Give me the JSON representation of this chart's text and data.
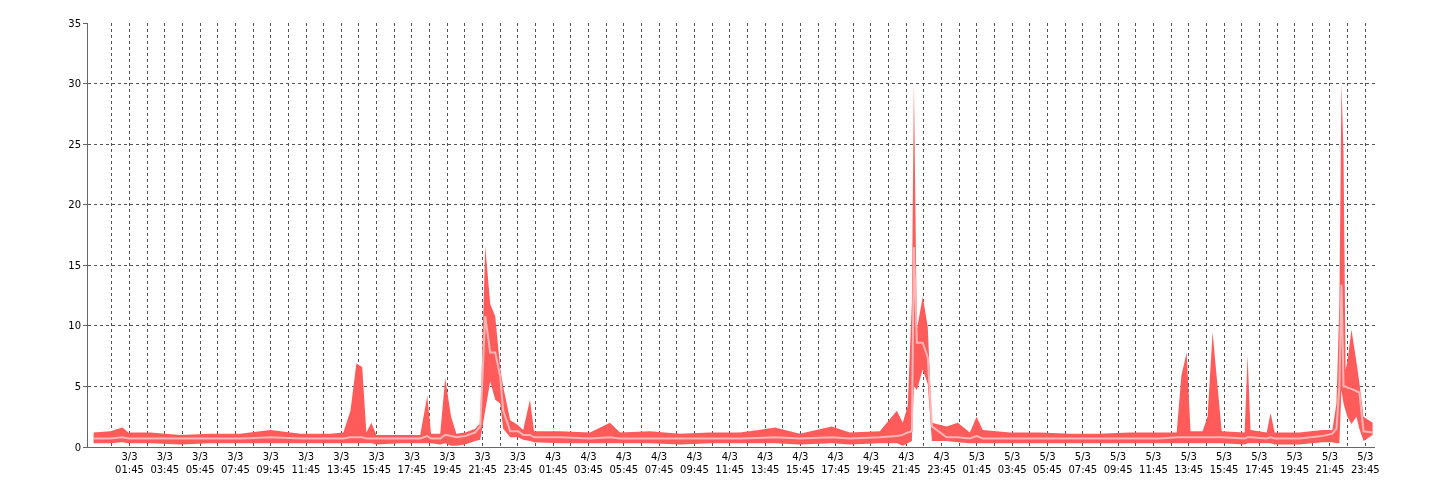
{
  "chart_data": {
    "type": "line",
    "x": [
      "--03-02T23:43",
      "--03-03T00:40",
      "--03-03T01:21",
      "--03-03T01:41",
      "--03-03T02:56",
      "--03-03T04:38",
      "--03-03T06:20",
      "--03-03T08:02",
      "--03-03T09:44",
      "--03-03T11:26",
      "--03-03T13:08",
      "--03-03T13:52",
      "--03-03T14:16",
      "--03-03T14:36",
      "--03-03T14:56",
      "--03-03T15:10",
      "--03-03T15:27",
      "--03-03T15:44",
      "--03-03T17:05",
      "--03-03T18:13",
      "--03-03T18:37",
      "--03-03T18:50",
      "--03-03T19:21",
      "--03-03T19:38",
      "--03-03T19:58",
      "--03-03T20:16",
      "--03-03T20:46",
      "--03-03T21:20",
      "--03-03T21:37",
      "--03-03T21:54",
      "--03-03T22:11",
      "--03-03T22:28",
      "--03-03T22:45",
      "--03-03T22:55",
      "--03-03T23:19",
      "--03-03T23:46",
      "--03-04T00:03",
      "--03-04T00:26",
      "--03-04T00:40",
      "--03-04T02:08",
      "--03-04T03:50",
      "--03-04T04:58",
      "--03-04T05:32",
      "--03-04T07:14",
      "--03-04T08:56",
      "--03-04T10:38",
      "--03-04T12:20",
      "--03-04T14:19",
      "--03-04T15:43",
      "--03-04T17:32",
      "--03-04T18:33",
      "--03-04T20:15",
      "--03-04T21:13",
      "--03-04T21:33",
      "--03-04T21:50",
      "--03-04T22:04",
      "--03-04T22:11",
      "--03-04T22:21",
      "--03-04T22:41",
      "--03-04T22:58",
      "--03-04T23:12",
      "--03-05T00:02",
      "--03-05T00:40",
      "--03-05T01:21",
      "--03-05T01:44",
      "--03-05T02:05",
      "--03-05T03:37",
      "--03-05T05:19",
      "--03-05T07:00",
      "--03-05T08:42",
      "--03-05T10:24",
      "--03-05T12:06",
      "--03-05T13:04",
      "--03-05T13:20",
      "--03-05T13:38",
      "--03-05T13:51",
      "--03-05T14:32",
      "--03-05T14:49",
      "--03-05T15:06",
      "--03-05T15:37",
      "--03-05T16:55",
      "--03-05T17:05",
      "--03-05T17:15",
      "--03-05T18:10",
      "--03-05T18:23",
      "--03-05T18:37",
      "--03-05T20:01",
      "--03-05T21:19",
      "--03-05T21:53",
      "--03-05T22:07",
      "--03-05T22:17",
      "--03-05T22:24",
      "--03-05T22:31",
      "--03-05T22:38",
      "--03-05T22:44",
      "--03-05T22:58",
      "--03-05T23:15",
      "--03-05T23:25",
      "--03-05T23:39",
      "--03-06T00:10"
    ],
    "series": [
      {
        "color": "#ffb5b5",
        "values": [
          0.7,
          0.7,
          0.8,
          0.7,
          0.7,
          0.7,
          0.7,
          0.7,
          0.8,
          0.7,
          0.7,
          0.7,
          0.8,
          0.8,
          0.8,
          0.7,
          0.7,
          0.7,
          0.7,
          0.7,
          0.9,
          0.7,
          0.7,
          1.0,
          0.9,
          0.8,
          0.9,
          1.2,
          1.7,
          10.8,
          7.8,
          7.8,
          5.8,
          3.0,
          1.3,
          1.3,
          1.0,
          1.0,
          0.8,
          0.8,
          0.7,
          0.8,
          0.7,
          0.7,
          0.7,
          0.7,
          0.7,
          0.8,
          0.7,
          0.8,
          0.7,
          0.8,
          0.9,
          1.0,
          1.2,
          1.3,
          16.5,
          8.6,
          8.6,
          7.4,
          1.7,
          0.8,
          0.8,
          0.7,
          0.9,
          0.7,
          0.7,
          0.7,
          0.7,
          0.7,
          0.7,
          0.7,
          0.8,
          0.8,
          0.8,
          0.8,
          0.8,
          0.8,
          0.8,
          0.8,
          0.7,
          0.8,
          0.8,
          0.7,
          0.8,
          0.7,
          0.7,
          0.9,
          1.1,
          1.5,
          5.0,
          13.4,
          5.0,
          5.0,
          4.9,
          4.8,
          4.6,
          4.5,
          1.3,
          1.2
        ],
        "upper": [
          1.2,
          1.3,
          1.6,
          1.2,
          1.2,
          1.0,
          1.1,
          1.1,
          1.4,
          1.1,
          1.1,
          1.2,
          3.0,
          6.9,
          6.6,
          1.2,
          2.0,
          1.0,
          1.0,
          1.0,
          4.2,
          1.1,
          1.1,
          5.7,
          2.5,
          1.1,
          1.2,
          1.5,
          2.0,
          16.6,
          11.8,
          10.8,
          6.5,
          5.0,
          2.2,
          1.8,
          1.4,
          3.9,
          1.3,
          1.3,
          1.2,
          2.0,
          1.2,
          1.3,
          1.1,
          1.2,
          1.2,
          1.6,
          1.1,
          1.7,
          1.2,
          1.3,
          3.0,
          2.0,
          3.4,
          11.9,
          30,
          9.7,
          12.4,
          9.9,
          2.0,
          1.7,
          2.0,
          1.2,
          2.5,
          1.4,
          1.2,
          1.2,
          1.1,
          1.1,
          1.2,
          1.2,
          1.2,
          5.9,
          7.8,
          1.3,
          1.3,
          2.5,
          9.5,
          1.3,
          1.2,
          7.6,
          1.4,
          1.2,
          2.8,
          1.2,
          1.2,
          1.4,
          1.4,
          3.6,
          11.9,
          30,
          24.3,
          6.4,
          7.0,
          9.7,
          7.0,
          5.3,
          2.5,
          2.0
        ],
        "lower": [
          0.3,
          0.3,
          0.4,
          0.3,
          0.3,
          0.2,
          0.3,
          0.3,
          0.3,
          0.3,
          0.3,
          0.3,
          0.3,
          0.3,
          0.3,
          0.3,
          0.3,
          0.2,
          0.3,
          0.3,
          0.3,
          0.3,
          0.2,
          0.3,
          0.1,
          0.1,
          0.2,
          0.5,
          0.6,
          3.0,
          5.4,
          3.9,
          3.6,
          1.5,
          0.8,
          0.8,
          0.6,
          0.5,
          0.4,
          0.3,
          0.3,
          0.3,
          0.3,
          0.3,
          0.2,
          0.3,
          0.3,
          0.3,
          0.2,
          0.3,
          0.2,
          0.3,
          0.3,
          0.1,
          0.3,
          0.5,
          5.0,
          4.7,
          6.4,
          5.2,
          0.5,
          0.5,
          0.4,
          0.3,
          0.3,
          0.3,
          0.3,
          0.3,
          0.3,
          0.3,
          0.3,
          0.3,
          0.3,
          0.3,
          0.3,
          0.3,
          0.3,
          0.3,
          0.3,
          0.3,
          0.2,
          0.3,
          0.3,
          0.3,
          0.3,
          0.2,
          0.2,
          0.4,
          0.4,
          0.3,
          0.3,
          4.7,
          3.6,
          3.0,
          2.5,
          1.9,
          2.5,
          1.5,
          0.5,
          1.0
        ]
      }
    ],
    "xlim": [
      "--03-02T23:24",
      "--03-06T00:18"
    ],
    "xticks": [
      {
        "value": "--03-03T00:45",
        "label": null
      },
      {
        "value": "--03-03T01:45",
        "label": "3/3\n01:45"
      },
      {
        "value": "--03-03T02:45",
        "label": null
      },
      {
        "value": "--03-03T03:45",
        "label": "3/3\n03:45"
      },
      {
        "value": "--03-03T04:45",
        "label": null
      },
      {
        "value": "--03-03T05:45",
        "label": "3/3\n05:45"
      },
      {
        "value": "--03-03T06:45",
        "label": null
      },
      {
        "value": "--03-03T07:45",
        "label": "3/3\n07:45"
      },
      {
        "value": "--03-03T08:45",
        "label": null
      },
      {
        "value": "--03-03T09:45",
        "label": "3/3\n09:45"
      },
      {
        "value": "--03-03T10:45",
        "label": null
      },
      {
        "value": "--03-03T11:45",
        "label": "3/3\n11:45"
      },
      {
        "value": "--03-03T12:45",
        "label": null
      },
      {
        "value": "--03-03T13:45",
        "label": "3/3\n13:45"
      },
      {
        "value": "--03-03T14:45",
        "label": null
      },
      {
        "value": "--03-03T15:45",
        "label": "3/3\n15:45"
      },
      {
        "value": "--03-03T16:45",
        "label": null
      },
      {
        "value": "--03-03T17:45",
        "label": "3/3\n17:45"
      },
      {
        "value": "--03-03T18:45",
        "label": null
      },
      {
        "value": "--03-03T19:45",
        "label": "3/3\n19:45"
      },
      {
        "value": "--03-03T20:45",
        "label": null
      },
      {
        "value": "--03-03T21:45",
        "label": "3/3\n21:45"
      },
      {
        "value": "--03-03T22:45",
        "label": null
      },
      {
        "value": "--03-03T23:45",
        "label": "3/3\n23:45"
      },
      {
        "value": "--03-04T00:45",
        "label": null
      },
      {
        "value": "--03-04T01:45",
        "label": "4/3\n01:45"
      },
      {
        "value": "--03-04T02:45",
        "label": null
      },
      {
        "value": "--03-04T03:45",
        "label": "4/3\n03:45"
      },
      {
        "value": "--03-04T04:45",
        "label": null
      },
      {
        "value": "--03-04T05:45",
        "label": "4/3\n05:45"
      },
      {
        "value": "--03-04T06:45",
        "label": null
      },
      {
        "value": "--03-04T07:45",
        "label": "4/3\n07:45"
      },
      {
        "value": "--03-04T08:45",
        "label": null
      },
      {
        "value": "--03-04T09:45",
        "label": "4/3\n09:45"
      },
      {
        "value": "--03-04T10:45",
        "label": null
      },
      {
        "value": "--03-04T11:45",
        "label": "4/3\n11:45"
      },
      {
        "value": "--03-04T12:45",
        "label": null
      },
      {
        "value": "--03-04T13:45",
        "label": "4/3\n13:45"
      },
      {
        "value": "--03-04T14:45",
        "label": null
      },
      {
        "value": "--03-04T15:45",
        "label": "4/3\n15:45"
      },
      {
        "value": "--03-04T16:45",
        "label": null
      },
      {
        "value": "--03-04T17:45",
        "label": "4/3\n17:45"
      },
      {
        "value": "--03-04T18:45",
        "label": null
      },
      {
        "value": "--03-04T19:45",
        "label": "4/3\n19:45"
      },
      {
        "value": "--03-04T20:45",
        "label": null
      },
      {
        "value": "--03-04T21:45",
        "label": "4/3\n21:45"
      },
      {
        "value": "--03-04T22:45",
        "label": null
      },
      {
        "value": "--03-04T23:45",
        "label": "4/3\n23:45"
      },
      {
        "value": "--03-05T00:45",
        "label": null
      },
      {
        "value": "--03-05T01:45",
        "label": "5/3\n01:45"
      },
      {
        "value": "--03-05T02:45",
        "label": null
      },
      {
        "value": "--03-05T03:45",
        "label": "5/3\n03:45"
      },
      {
        "value": "--03-05T04:45",
        "label": null
      },
      {
        "value": "--03-05T05:45",
        "label": "5/3\n05:45"
      },
      {
        "value": "--03-05T06:45",
        "label": null
      },
      {
        "value": "--03-05T07:45",
        "label": "5/3\n07:45"
      },
      {
        "value": "--03-05T08:45",
        "label": null
      },
      {
        "value": "--03-05T09:45",
        "label": "5/3\n09:45"
      },
      {
        "value": "--03-05T10:45",
        "label": null
      },
      {
        "value": "--03-05T11:45",
        "label": "5/3\n11:45"
      },
      {
        "value": "--03-05T12:45",
        "label": null
      },
      {
        "value": "--03-05T13:45",
        "label": "5/3\n13:45"
      },
      {
        "value": "--03-05T14:45",
        "label": null
      },
      {
        "value": "--03-05T15:45",
        "label": "5/3\n15:45"
      },
      {
        "value": "--03-05T16:45",
        "label": null
      },
      {
        "value": "--03-05T17:45",
        "label": "5/3\n17:45"
      },
      {
        "value": "--03-05T18:45",
        "label": null
      },
      {
        "value": "--03-05T19:45",
        "label": "5/3\n19:45"
      },
      {
        "value": "--03-05T20:45",
        "label": null
      },
      {
        "value": "--03-05T21:45",
        "label": "5/3\n21:45"
      },
      {
        "value": "--03-05T22:45",
        "label": null
      },
      {
        "value": "--03-05T23:45",
        "label": "5/3\n23:45"
      }
    ],
    "ylim": [
      0,
      35
    ],
    "yticks": [
      0,
      5,
      10,
      15,
      20,
      25,
      30,
      35
    ],
    "grid": true,
    "marker": "none",
    "line_style": "solid"
  }
}
